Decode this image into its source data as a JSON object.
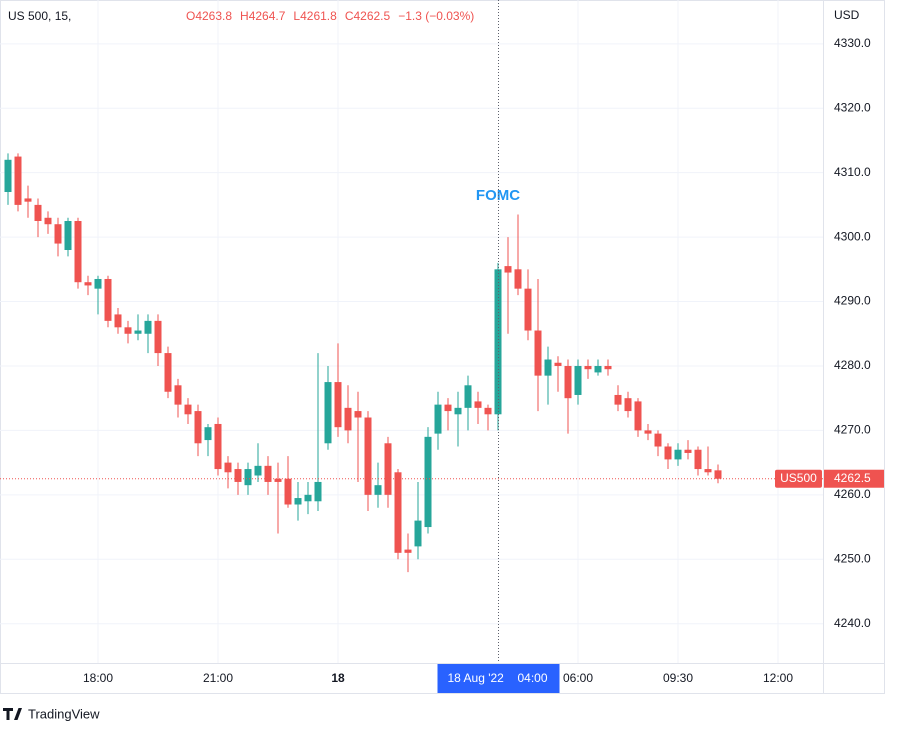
{
  "chart_data": {
    "type": "candlestick",
    "title": "US 500, 15,",
    "header_values": [
      "O4263.8",
      "H4264.7",
      "L4261.8",
      "C4262.5",
      "−1.3 (−0.03%)"
    ],
    "currency": "USD",
    "annotation": "FOMC",
    "annotation_x": 49,
    "symbol_label": "US500",
    "crosshair_x": 49,
    "crosshair_date": "18 Aug '22",
    "crosshair_time": "04:00",
    "brand": "TradingView",
    "up_color": "#26a69a",
    "down_color": "#ef5350",
    "grid": true,
    "xlim": [
      -0.8,
      81.5
    ],
    "ylim": [
      4233.9,
      4336.8
    ],
    "xticks": [
      {
        "value": 9,
        "label": "18:00"
      },
      {
        "value": 21,
        "label": "21:00"
      },
      {
        "value": 33,
        "label": "18"
      },
      {
        "value": 57,
        "label": "06:00"
      },
      {
        "value": 67,
        "label": "09:30"
      },
      {
        "value": 77,
        "label": "12:00"
      }
    ],
    "yticks": [
      {
        "value": 4240,
        "label": "4240.0"
      },
      {
        "value": 4250,
        "label": "4250.0"
      },
      {
        "value": 4260,
        "label": "4260.0"
      },
      {
        "value": 4270,
        "label": "4270.0"
      },
      {
        "value": 4280,
        "label": "4280.0"
      },
      {
        "value": 4290,
        "label": "4290.0"
      },
      {
        "value": 4300,
        "label": "4300.0"
      },
      {
        "value": 4310,
        "label": "4310.0"
      },
      {
        "value": 4320,
        "label": "4320.0"
      },
      {
        "value": 4330,
        "label": "4330.0"
      }
    ],
    "x": [
      0,
      1,
      2,
      3,
      4,
      5,
      6,
      7,
      8,
      9,
      10,
      11,
      12,
      13,
      14,
      15,
      16,
      17,
      18,
      19,
      20,
      21,
      22,
      23,
      24,
      25,
      26,
      27,
      28,
      29,
      30,
      31,
      32,
      33,
      34,
      35,
      36,
      37,
      38,
      39,
      40,
      41,
      42,
      43,
      44,
      45,
      46,
      47,
      48,
      49,
      50,
      51,
      52,
      53,
      54,
      55,
      56,
      57,
      58,
      59,
      60,
      61,
      62,
      63,
      64,
      65,
      66,
      67,
      68,
      69,
      70,
      71
    ],
    "open": [
      4307,
      4312.5,
      4306,
      4305,
      4303,
      4302,
      4298,
      4302.5,
      4293,
      4292,
      4293.5,
      4288,
      4286,
      4285,
      4285,
      4287,
      4282,
      4277,
      4274,
      4273,
      4268.5,
      4271,
      4265,
      4264,
      4261.5,
      4263,
      4264.5,
      4262.5,
      4262.5,
      4258.5,
      4259,
      4259,
      4268,
      4277.5,
      4273.5,
      4273,
      4272,
      4260,
      4268,
      4263.5,
      4251.5,
      4252,
      4255,
      4269.5,
      4274,
      4272.5,
      4273.5,
      4274.5,
      4273.5,
      4272.5,
      4295.5,
      4295,
      4292,
      4285.5,
      4278.5,
      4280.5,
      4280,
      4275.5,
      4280,
      4279,
      4280,
      4275.5,
      4275,
      4274.5,
      4270,
      4269.5,
      4267.5,
      4265.5,
      4267,
      4267,
      4264,
      4263.8
    ],
    "high": [
      4313,
      4313,
      4308,
      4306,
      4304,
      4303,
      4303,
      4303,
      4294,
      4294,
      4294,
      4289,
      4287,
      4288,
      4288,
      4288,
      4283,
      4278,
      4275,
      4274,
      4271,
      4272,
      4266,
      4265,
      4265,
      4268,
      4266,
      4265,
      4266,
      4262,
      4262,
      4282,
      4280,
      4283.5,
      4277,
      4276,
      4273,
      4265,
      4269,
      4264,
      4254,
      4262,
      4270.5,
      4276,
      4275,
      4276,
      4278.5,
      4276,
      4274,
      4296,
      4300,
      4303.5,
      4295,
      4293.5,
      4283,
      4281.5,
      4281,
      4281,
      4281,
      4281,
      4281,
      4277,
      4276,
      4275,
      4271,
      4270,
      4268,
      4268,
      4268.5,
      4267.5,
      4267.5,
      4264.7
    ],
    "low": [
      4305,
      4304,
      4303,
      4300,
      4300.5,
      4297,
      4297,
      4292,
      4291,
      4288,
      4286,
      4285,
      4283.5,
      4284,
      4282,
      4280,
      4275,
      4272,
      4271,
      4266,
      4266,
      4263,
      4261,
      4260,
      4260,
      4262,
      4260,
      4254,
      4258,
      4256,
      4257,
      4257.5,
      4267,
      4269,
      4268,
      4262,
      4257.5,
      4258,
      4258,
      4250,
      4248,
      4250,
      4254,
      4267,
      4270,
      4267.5,
      4270,
      4271,
      4270,
      4270,
      4285,
      4291,
      4284,
      4273,
      4274,
      4276,
      4269.5,
      4274,
      4278,
      4278.5,
      4278.5,
      4273,
      4272,
      4269,
      4268.5,
      4266,
      4264,
      4264.5,
      4265.5,
      4263,
      4263,
      4261.8
    ],
    "close": [
      4312,
      4305,
      4305.5,
      4302.5,
      4302,
      4299,
      4302.5,
      4293,
      4292.5,
      4293.5,
      4287,
      4286,
      4285,
      4285.5,
      4287,
      4282,
      4276,
      4274,
      4272.5,
      4268,
      4270.5,
      4264,
      4263.5,
      4262,
      4264,
      4264.5,
      4262,
      4262,
      4258.5,
      4259.5,
      4260,
      4262,
      4277.5,
      4270.5,
      4270,
      4272,
      4260,
      4261.5,
      4260,
      4251,
      4251,
      4256,
      4269,
      4274,
      4273,
      4273.5,
      4277,
      4273.5,
      4272.5,
      4295,
      4294.5,
      4292,
      4285.5,
      4278.5,
      4281,
      4280,
      4275,
      4280,
      4279.5,
      4280,
      4279.5,
      4274,
      4273,
      4270,
      4269.5,
      4267.5,
      4265.5,
      4267,
      4266.5,
      4264,
      4263.5,
      4262.5
    ]
  }
}
